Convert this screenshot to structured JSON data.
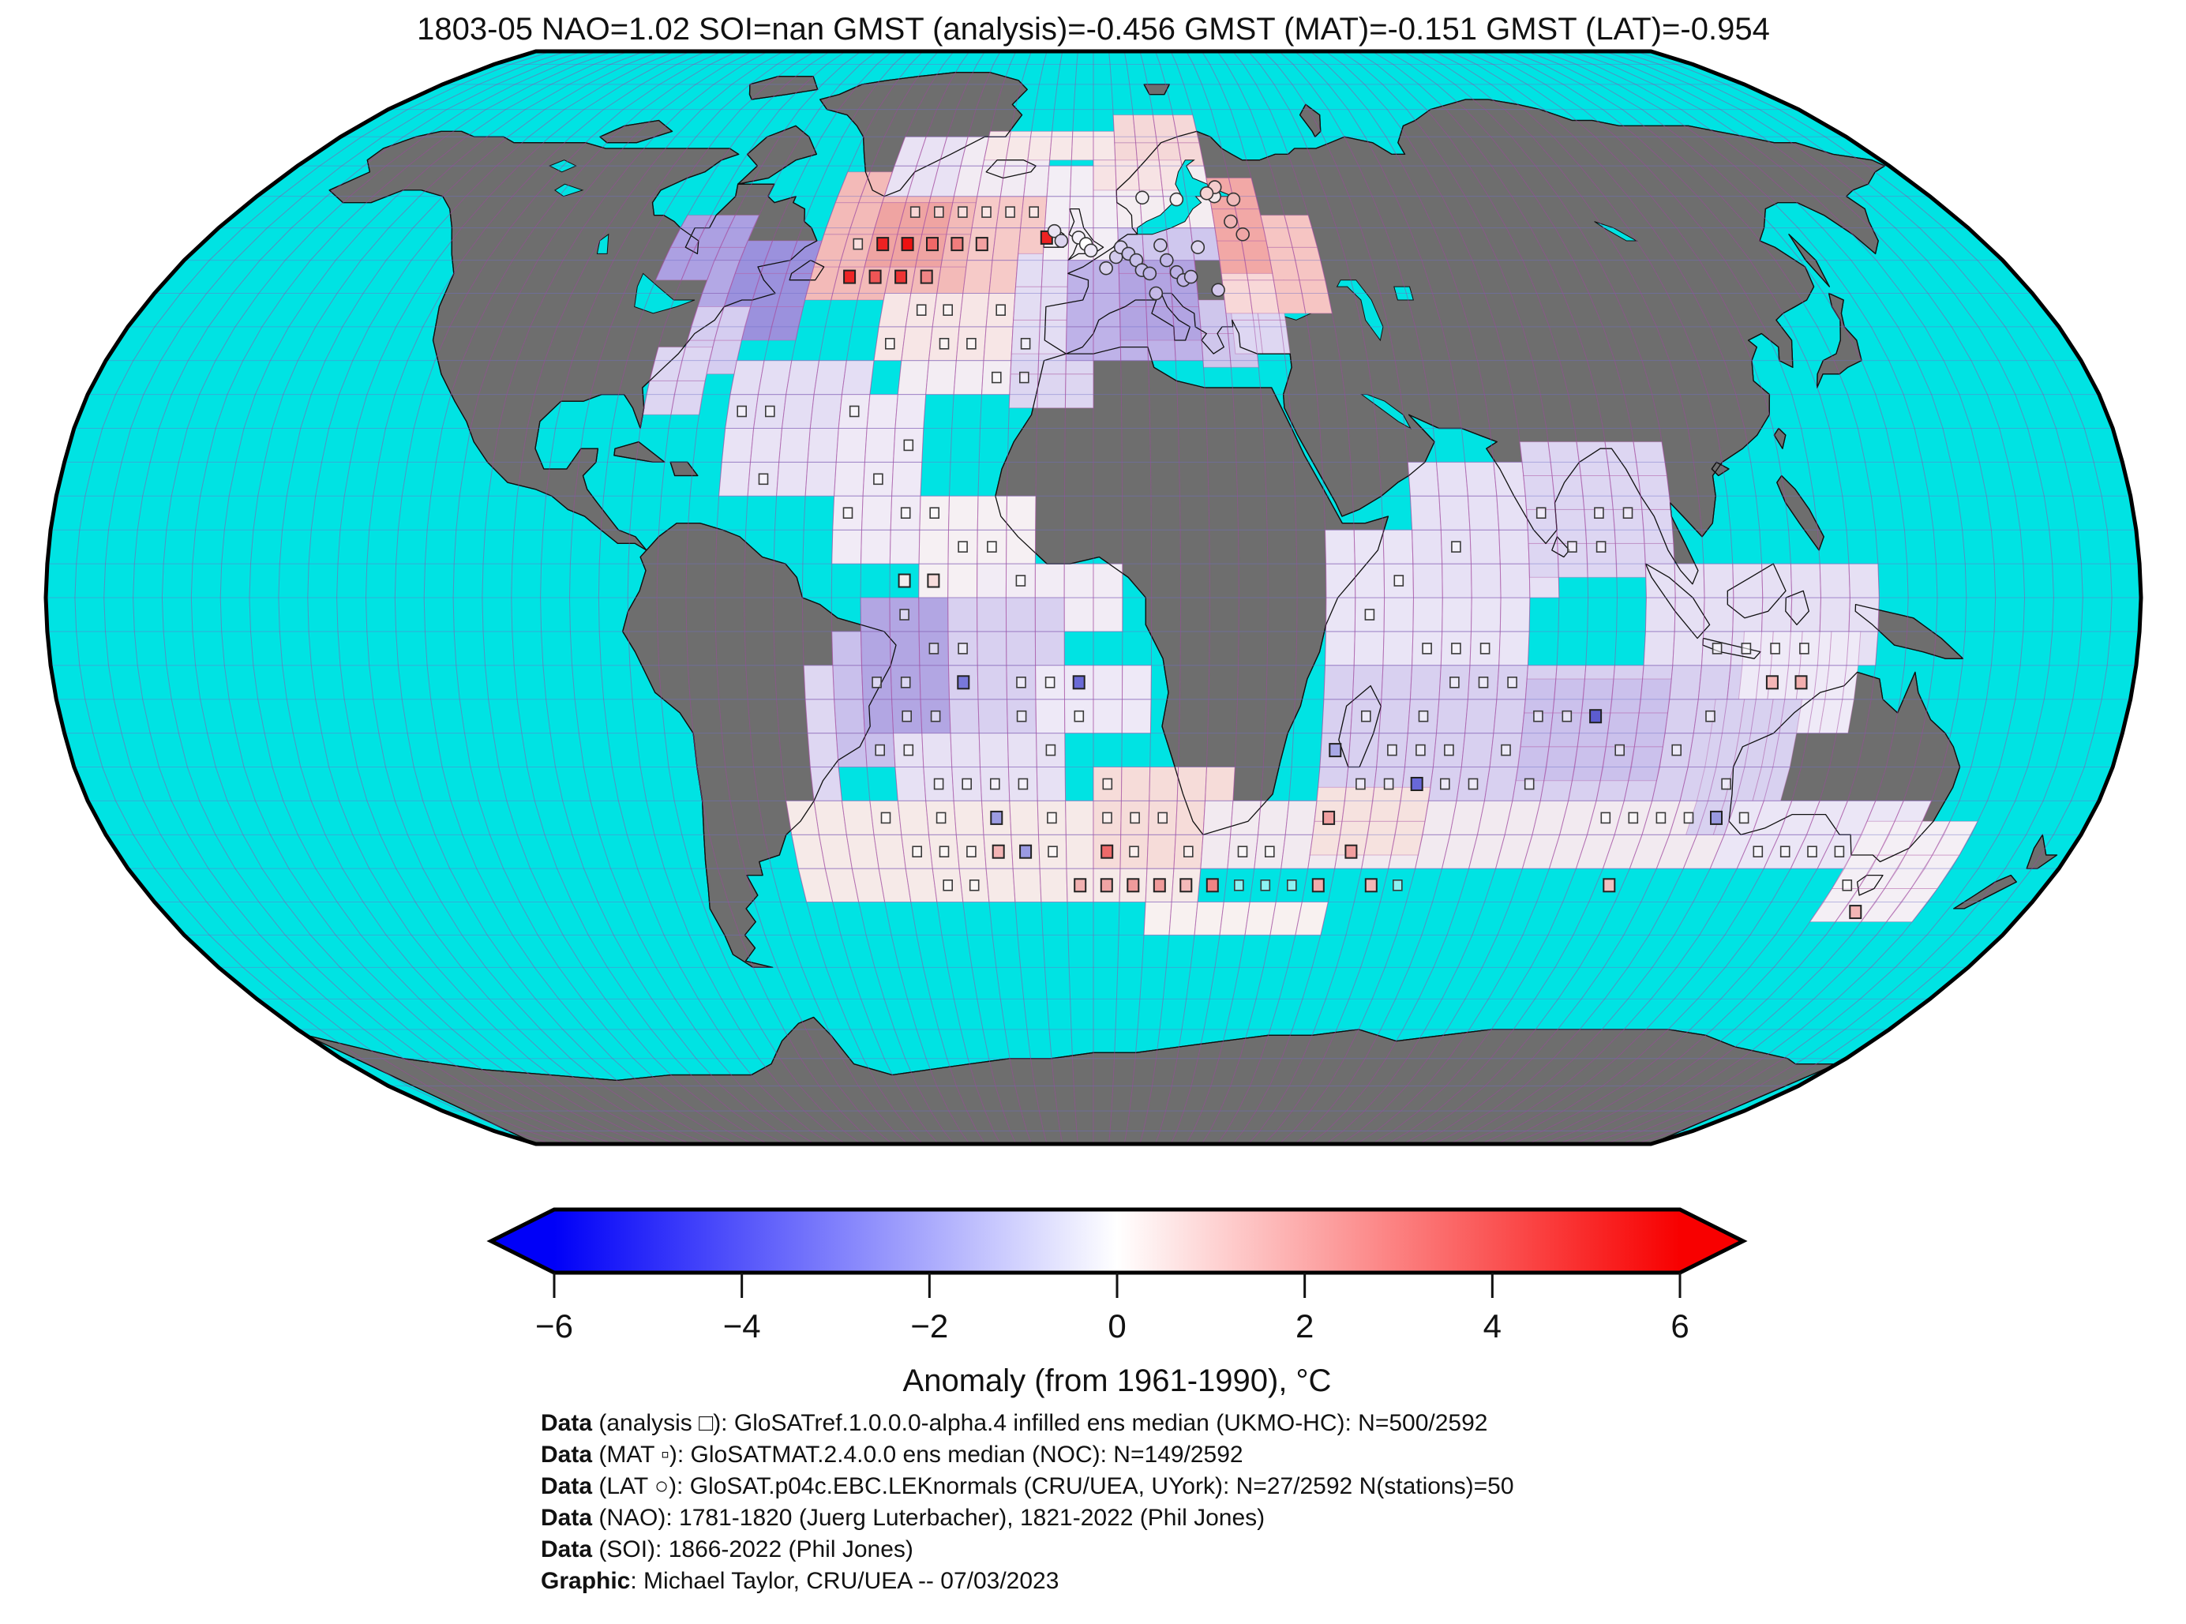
{
  "title": "1803-05 NAO=1.02 SOI=nan GMST (analysis)=-0.456 GMST (MAT)=-0.151 GMST (LAT)=-0.954",
  "colorbar": {
    "label": "Anomaly (from 1961-1990), °C",
    "ticks": [
      "−6",
      "−4",
      "−2",
      "0",
      "2",
      "4",
      "6"
    ],
    "min": -6,
    "max": 6,
    "color_min": "#0000f8",
    "color_mid": "#ffffff",
    "color_max": "#f80000"
  },
  "footer": {
    "lines": [
      {
        "prefix": "Data",
        "text": " (analysis □): GloSATref.1.0.0.0-alpha.4 infilled ens median (UKMO-HC): N=500/2592"
      },
      {
        "prefix": "Data",
        "text": " (MAT ▫): GloSATMAT.2.4.0.0 ens median (NOC): N=149/2592"
      },
      {
        "prefix": "Data",
        "text": " (LAT ○): GloSAT.p04c.EBC.LEKnormals (CRU/UEA, UYork): N=27/2592 N(stations)=50"
      },
      {
        "prefix": "Data",
        "text": " (NAO): 1781-1820 (Juerg Luterbacher), 1821-2022 (Phil Jones)"
      },
      {
        "prefix": "Data",
        "text": " (SOI): 1866-2022 (Phil Jones)"
      },
      {
        "prefix": "Graphic",
        "text": ": Michael Taylor, CRU/UEA -- 07/03/2023"
      }
    ]
  },
  "map": {
    "projection": "robinson",
    "ocean_color": "#00e3e3",
    "land_color": "#6e6e6e",
    "coast_color": "#101010",
    "meridian_color": "rgba(160,70,160,0.50)",
    "parallel_color": "rgba(110,110,200,0.45)",
    "cell_grid_color": "rgba(180,100,170,0.45)",
    "grid_step_deg": 5,
    "cells": [
      [
        -85,
        47,
        -70,
        57,
        "#aca0e2"
      ],
      [
        -75,
        40,
        -65,
        50,
        "#b3a8e5"
      ],
      [
        -70,
        38,
        -55,
        50,
        "#9b91dd"
      ],
      [
        -75,
        33,
        -65,
        40,
        "#d5cdf0"
      ],
      [
        -80,
        27,
        -70,
        33,
        "#ddd6f2"
      ],
      [
        -55,
        44,
        -25,
        61,
        "#f3bab8"
      ],
      [
        -45,
        49,
        -30,
        59,
        "#efa4a2"
      ],
      [
        -25,
        45,
        -10,
        61,
        "#f6cac8"
      ],
      [
        -45,
        60,
        -30,
        66,
        "#e9e2f4"
      ],
      [
        -30,
        60,
        -10,
        66,
        "#f2ebf3"
      ],
      [
        -25,
        66,
        5,
        71,
        "#f7e8e8"
      ],
      [
        5,
        64,
        25,
        71,
        "#f5d8d8"
      ],
      [
        -40,
        35,
        -10,
        45,
        "#f7e6e6"
      ],
      [
        -35,
        30,
        -10,
        35,
        "#f3edf3"
      ],
      [
        -65,
        25,
        -40,
        35,
        "#e4def4"
      ],
      [
        -65,
        15,
        -45,
        25,
        "#e9e3f5"
      ],
      [
        -45,
        15,
        -30,
        30,
        "#efe9f6"
      ],
      [
        -45,
        5,
        -30,
        15,
        "#f1ebf6"
      ],
      [
        -30,
        0,
        -10,
        15,
        "#f6f0f3"
      ],
      [
        -20,
        -5,
        5,
        5,
        "#f2ecf5"
      ],
      [
        -45,
        -25,
        -25,
        -5,
        "#c9c0ec"
      ],
      [
        -40,
        -20,
        -25,
        0,
        "#b2a6e3"
      ],
      [
        -25,
        -20,
        -5,
        0,
        "#d8d0f0"
      ],
      [
        -35,
        -30,
        -5,
        -20,
        "#e7e1f4"
      ],
      [
        -50,
        -30,
        -45,
        -10,
        "#ded7f2"
      ],
      [
        -10,
        -20,
        10,
        -10,
        "#eee9f7"
      ],
      [
        -55,
        -45,
        20,
        -30,
        "#f6eae8"
      ],
      [
        0,
        -40,
        25,
        -28,
        "#f6dcd9"
      ],
      [
        10,
        -50,
        45,
        -45,
        "#f8f1f0"
      ],
      [
        40,
        -10,
        75,
        10,
        "#eae5f6"
      ],
      [
        55,
        0,
        78,
        17,
        "#e7e1f5"
      ],
      [
        75,
        3,
        98,
        22,
        "#ddd6f2"
      ],
      [
        40,
        -30,
        115,
        -10,
        "#d8d0f0"
      ],
      [
        75,
        -27,
        100,
        -13,
        "#cbc1ec"
      ],
      [
        20,
        -40,
        115,
        -30,
        "#f2eaf0"
      ],
      [
        40,
        -38,
        60,
        -30,
        "#f6e2df"
      ],
      [
        95,
        -10,
        132,
        2,
        "#e6e0f4"
      ],
      [
        112,
        -20,
        132,
        -8,
        "#efeaf7"
      ],
      [
        108,
        -35,
        120,
        -18,
        "#d8d1f0"
      ],
      [
        115,
        -40,
        147,
        -31,
        "#ebe6f6"
      ],
      [
        140,
        -48,
        157,
        -33,
        "#f4eff5"
      ],
      [
        -15,
        28,
        0,
        36,
        "#ddd6f1"
      ],
      [
        -15,
        36,
        -5,
        50,
        "#e3ddf3"
      ],
      [
        -10,
        50,
        5,
        61,
        "#f3eef5"
      ],
      [
        -5,
        35,
        20,
        46,
        "#beb2e8"
      ],
      [
        5,
        38,
        20,
        50,
        "#b2a4e2"
      ],
      [
        20,
        34,
        27,
        42,
        "#cfc6ec"
      ],
      [
        26,
        36,
        36,
        43,
        "#ded7f2"
      ],
      [
        5,
        50,
        25,
        56,
        "#cfc7ee"
      ],
      [
        5,
        55,
        25,
        63,
        "#f4edf1"
      ],
      [
        0,
        61,
        20,
        66,
        "#f7e3e4"
      ],
      [
        25,
        42,
        35,
        48,
        "#f8d8d8"
      ],
      [
        35,
        42,
        45,
        55,
        "#f6c5c3"
      ],
      [
        25,
        48,
        35,
        60,
        "#f2a8a6"
      ]
    ],
    "markers": {
      "analysis_squares": [
        [
          -47.5,
          52.5
        ],
        [
          -42.5,
          52.5
        ],
        [
          -37.5,
          52.5
        ],
        [
          -32.5,
          52.5
        ],
        [
          -27.5,
          52.5
        ],
        [
          -47.5,
          47.5
        ],
        [
          -42.5,
          47.5
        ],
        [
          -37.5,
          57.5
        ],
        [
          -32.5,
          57.5
        ],
        [
          -27.5,
          57.5
        ],
        [
          -22.5,
          57.5
        ],
        [
          -17.5,
          57.5
        ],
        [
          -12.5,
          57.5
        ],
        [
          -32.5,
          42.5
        ],
        [
          -27.5,
          42.5
        ],
        [
          -17.5,
          42.5
        ],
        [
          -37.5,
          37.5
        ],
        [
          -27.5,
          37.5
        ],
        [
          -22.5,
          37.5
        ],
        [
          -12.5,
          37.5
        ],
        [
          -17.5,
          32.5
        ],
        [
          -12.5,
          32.5
        ],
        [
          -42.5,
          27.5
        ],
        [
          -62.5,
          27.5
        ],
        [
          -57.5,
          27.5
        ],
        [
          -32.5,
          22.5
        ],
        [
          -57.5,
          17.5
        ],
        [
          -37.5,
          17.5
        ],
        [
          -42.5,
          12.5
        ],
        [
          -32.5,
          12.5
        ],
        [
          -27.5,
          12.5
        ],
        [
          -22.5,
          7.5
        ],
        [
          -17.5,
          7.5
        ],
        [
          -27.5,
          2.5
        ],
        [
          -12.5,
          2.5
        ],
        [
          -32.5,
          -2.5
        ],
        [
          -27.5,
          -7.5
        ],
        [
          -22.5,
          -7.5
        ],
        [
          -37.5,
          -12.5
        ],
        [
          -32.5,
          -12.5
        ],
        [
          -12.5,
          -12.5
        ],
        [
          -7.5,
          -12.5
        ],
        [
          -32.5,
          -17.5
        ],
        [
          -27.5,
          -17.5
        ],
        [
          -12.5,
          -17.5
        ],
        [
          -2.5,
          -17.5
        ],
        [
          -37.5,
          -22.5
        ],
        [
          -32.5,
          -22.5
        ],
        [
          -7.5,
          -22.5
        ],
        [
          -27.5,
          -27.5
        ],
        [
          -22.5,
          -27.5
        ],
        [
          -17.5,
          -27.5
        ],
        [
          -12.5,
          -27.5
        ],
        [
          2.5,
          -27.5
        ],
        [
          -37.5,
          -32.5
        ],
        [
          -27.5,
          -32.5
        ],
        [
          -17.5,
          -32.5
        ],
        [
          -7.5,
          -32.5
        ],
        [
          2.5,
          -32.5
        ],
        [
          7.5,
          -32.5
        ],
        [
          12.5,
          -32.5
        ],
        [
          -32.5,
          -37.5
        ],
        [
          -27.5,
          -37.5
        ],
        [
          -22.5,
          -37.5
        ],
        [
          -7.5,
          -37.5
        ],
        [
          7.5,
          -37.5
        ],
        [
          17.5,
          -37.5
        ],
        [
          27.5,
          -37.5
        ],
        [
          32.5,
          -37.5
        ],
        [
          -27.5,
          -42.5
        ],
        [
          -22.5,
          -42.5
        ],
        [
          27.5,
          -42.5
        ],
        [
          32.5,
          -42.5
        ],
        [
          37.5,
          -42.5
        ],
        [
          57.5,
          -42.5
        ],
        [
          47.5,
          -2.5
        ],
        [
          52.5,
          2.5
        ],
        [
          62.5,
          7.5
        ],
        [
          57.5,
          -7.5
        ],
        [
          62.5,
          -7.5
        ],
        [
          67.5,
          -7.5
        ],
        [
          82.5,
          7.5
        ],
        [
          87.5,
          12.5
        ],
        [
          92.5,
          12.5
        ],
        [
          87.5,
          7.5
        ],
        [
          77.5,
          12.5
        ],
        [
          62.5,
          -12.5
        ],
        [
          67.5,
          -12.5
        ],
        [
          72.5,
          -12.5
        ],
        [
          47.5,
          -17.5
        ],
        [
          57.5,
          -17.5
        ],
        [
          77.5,
          -17.5
        ],
        [
          82.5,
          -17.5
        ],
        [
          52.5,
          -22.5
        ],
        [
          57.5,
          -22.5
        ],
        [
          62.5,
          -22.5
        ],
        [
          72.5,
          -22.5
        ],
        [
          92.5,
          -22.5
        ],
        [
          102.5,
          -22.5
        ],
        [
          47.5,
          -27.5
        ],
        [
          52.5,
          -27.5
        ],
        [
          62.5,
          -27.5
        ],
        [
          67.5,
          -27.5
        ],
        [
          77.5,
          -27.5
        ],
        [
          112.5,
          -27.5
        ],
        [
          107.5,
          -17.5
        ],
        [
          92.5,
          -32.5
        ],
        [
          97.5,
          -32.5
        ],
        [
          102.5,
          -32.5
        ],
        [
          107.5,
          -32.5
        ],
        [
          117.5,
          -32.5
        ],
        [
          122.5,
          -37.5
        ],
        [
          127.5,
          -37.5
        ],
        [
          132.5,
          -37.5
        ],
        [
          137.5,
          -37.5
        ],
        [
          142.5,
          -42.5
        ],
        [
          107.5,
          -7.5
        ],
        [
          112.5,
          -7.5
        ],
        [
          117.5,
          -7.5
        ],
        [
          122.5,
          -7.5
        ]
      ],
      "mat_squares": [
        [
          -42.5,
          52.5,
          "#ee2222"
        ],
        [
          -37.5,
          52.5,
          "#ee1111"
        ],
        [
          -32.5,
          52.5,
          "#f06868"
        ],
        [
          -27.5,
          52.5,
          "#f07d7d"
        ],
        [
          -22.5,
          52.5,
          "#f3a1a1"
        ],
        [
          -47.5,
          47.5,
          "#ee2525"
        ],
        [
          -42.5,
          47.5,
          "#ef5555"
        ],
        [
          -37.5,
          47.5,
          "#ee3333"
        ],
        [
          -9.5,
          53.5,
          "#ee2222"
        ],
        [
          -32.5,
          47.5,
          "#f08585"
        ],
        [
          -27.5,
          2.5,
          "#f7dcdc"
        ],
        [
          -32.5,
          2.5,
          "#f3eced"
        ],
        [
          -17.5,
          -37.5,
          "#f3b4b4"
        ],
        [
          -12.5,
          -37.5,
          "#9a9ae2"
        ],
        [
          2.5,
          -37.5,
          "#ee6a6a"
        ],
        [
          -2.5,
          -42.5,
          "#f2b1b1"
        ],
        [
          2.5,
          -42.5,
          "#f0a4a4"
        ],
        [
          7.5,
          -42.5,
          "#ef9b9b"
        ],
        [
          12.5,
          -42.5,
          "#f09a9a"
        ],
        [
          17.5,
          -42.5,
          "#f4baba"
        ],
        [
          22.5,
          -42.5,
          "#ee8484"
        ],
        [
          42.5,
          -42.5,
          "#f2abab"
        ],
        [
          52.5,
          -42.5,
          "#f3b6b6"
        ],
        [
          47.5,
          -37.5,
          "#f19f9f"
        ],
        [
          42.5,
          -32.5,
          "#f0a0a0"
        ],
        [
          57.5,
          -27.5,
          "#6868d8"
        ],
        [
          42.5,
          -22.5,
          "#a8a8e6"
        ],
        [
          87.5,
          -17.5,
          "#5c5cd0"
        ],
        [
          -22.5,
          -12.5,
          "#7878da"
        ],
        [
          -2.5,
          -12.5,
          "#6a6ad6"
        ],
        [
          -17.5,
          -32.5,
          "#9c9ce2"
        ],
        [
          117.5,
          -12.5,
          "#f4b6b6"
        ],
        [
          122.5,
          -12.5,
          "#f3aeae"
        ],
        [
          112.5,
          -32.5,
          "#9a9ae0"
        ],
        [
          97.5,
          -42.5,
          "#f2c0c0"
        ],
        [
          147.5,
          -46.5,
          "#f3b5b5"
        ]
      ],
      "lat_circles": [
        [
          -8,
          54.5,
          "#e8e2f2"
        ],
        [
          -6.5,
          53,
          "#dcd4ee"
        ],
        [
          -3,
          53.5,
          "#f4f0f8"
        ],
        [
          -1.5,
          52.5,
          "#ffffff"
        ],
        [
          -0.5,
          51.5,
          "#eee8f6"
        ],
        [
          2.5,
          48.8,
          "#d8d0ee"
        ],
        [
          4.5,
          50.5,
          "#d2caec"
        ],
        [
          5.5,
          52,
          "#d8d0f0"
        ],
        [
          7,
          51,
          "#cac2ea"
        ],
        [
          8.5,
          50,
          "#c8c0ea"
        ],
        [
          9.5,
          48.5,
          "#c2b8e8"
        ],
        [
          11,
          48,
          "#beb4e6"
        ],
        [
          12,
          45,
          "#c6bae8"
        ],
        [
          13.5,
          52.3,
          "#d0c8ec"
        ],
        [
          14.5,
          50,
          "#c2b8e8"
        ],
        [
          16.3,
          48.2,
          "#bcb0e6"
        ],
        [
          17.5,
          47,
          "#c2b6e8"
        ],
        [
          19,
          47.5,
          "#c8bcea"
        ],
        [
          21,
          52,
          "#ded6f0"
        ],
        [
          24,
          45.5,
          "#d4c8ec"
        ],
        [
          26,
          60,
          "#f2e6e8"
        ],
        [
          26.5,
          61.5,
          "#f4cccc"
        ],
        [
          28.5,
          56,
          "#f0b4b4"
        ],
        [
          30.5,
          54,
          "#efa6a6"
        ],
        [
          30,
          59.5,
          "#f0baba"
        ],
        [
          24.5,
          60.5,
          "#f4d4d4"
        ],
        [
          10.5,
          59.8,
          "#f2ecf2"
        ],
        [
          17.8,
          59.5,
          "#f4eef2"
        ]
      ]
    }
  }
}
